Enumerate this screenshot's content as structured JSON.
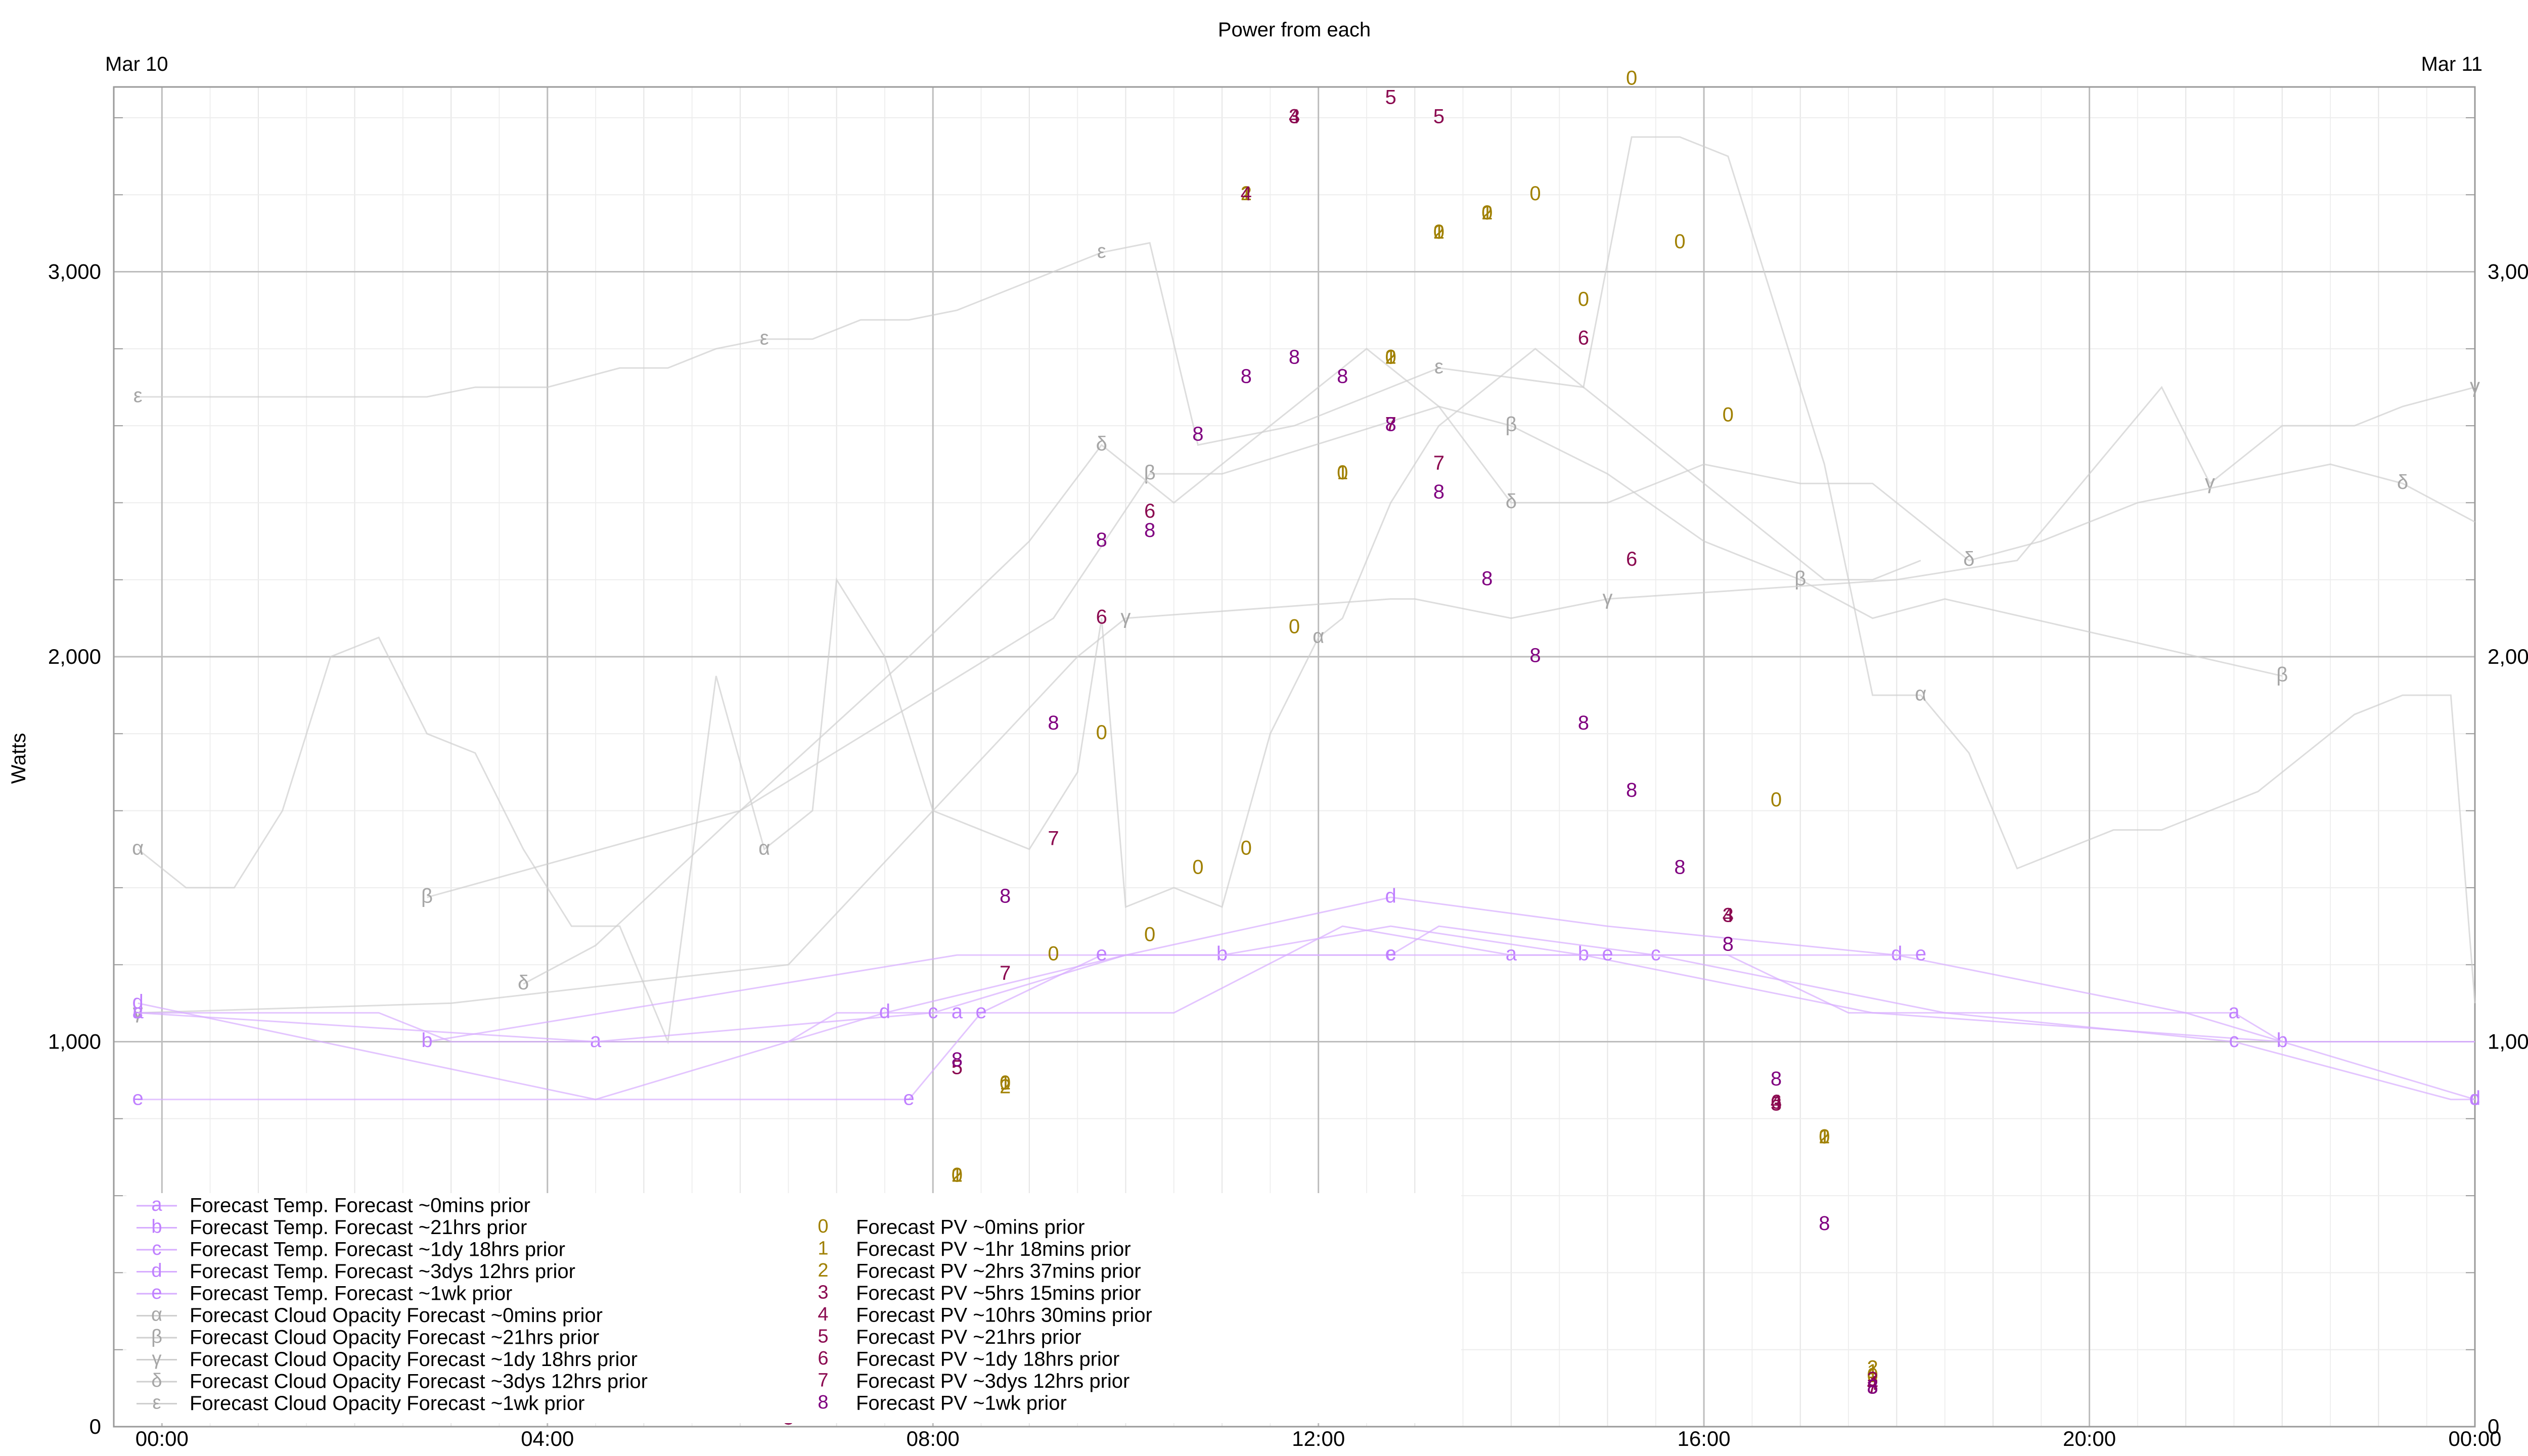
{
  "chart_data": {
    "type": "line",
    "title": "Power from each",
    "ylabel": "Watts",
    "xlabel": "",
    "top_labels": [
      "Mar 10",
      "Mar 11"
    ],
    "x_domain_hours": [
      -0.5,
      24.0
    ],
    "ylim": [
      0,
      3480
    ],
    "x_ticks": [
      {
        "h": 0,
        "label": "00:00"
      },
      {
        "h": 4,
        "label": "04:00"
      },
      {
        "h": 8,
        "label": "08:00"
      },
      {
        "h": 12,
        "label": "12:00"
      },
      {
        "h": 16,
        "label": "16:00"
      },
      {
        "h": 20,
        "label": "20:00"
      },
      {
        "h": 24,
        "label": "00:00"
      }
    ],
    "y_ticks": [
      {
        "v": 0,
        "label": "0"
      },
      {
        "v": 1000,
        "label": "1,000"
      },
      {
        "v": 2000,
        "label": "2,000"
      },
      {
        "v": 3000,
        "label": "3,000"
      }
    ],
    "grid": true,
    "legend_position": "bottom-left",
    "colors": {
      "temp": "#c080ff",
      "cloud": "#b8b8b8",
      "pv_recent": "#a08000",
      "pv_older": "#8b0a50",
      "pv_oldest": "#800080",
      "grid": "#d9d9d9"
    },
    "temp_series": [
      {
        "symbol": "a",
        "name": "Forecast Temp. Forecast ~0mins prior",
        "x": [
          -0.25,
          2.25,
          3.0,
          4.5,
          6.5,
          7.0,
          8.25,
          10.5,
          12.25,
          14.0,
          16.25,
          17.5,
          21.5,
          22.0,
          24.0
        ],
        "y": [
          1075,
          1075,
          1000,
          1000,
          1000,
          1075,
          1075,
          1075,
          1300,
          1225,
          1225,
          1075,
          1075,
          1000,
          1000
        ]
      },
      {
        "symbol": "b",
        "name": "Forecast Temp. Forecast ~21hrs prior",
        "x": [
          2.75,
          8.25,
          11.0,
          12.75,
          14.75,
          17.75,
          22.0,
          24.0
        ],
        "y": [
          1000,
          1225,
          1225,
          1300,
          1225,
          1075,
          1000,
          1000
        ]
      },
      {
        "symbol": "c",
        "name": "Forecast Temp. Forecast ~1dy 18hrs prior",
        "x": [
          -0.25,
          4.5,
          8.0,
          10.0,
          12.75,
          13.25,
          15.5,
          18.5,
          21.5,
          23.75,
          24.0
        ],
        "y": [
          1075,
          1000,
          1075,
          1225,
          1225,
          1300,
          1225,
          1075,
          1000,
          850,
          850
        ]
      },
      {
        "symbol": "d",
        "name": "Forecast Temp. Forecast ~3dys 12hrs prior",
        "x": [
          -0.25,
          4.5,
          7.5,
          10.0,
          12.75,
          15.0,
          18.0,
          21.0,
          24.0
        ],
        "y": [
          1100,
          850,
          1075,
          1225,
          1375,
          1300,
          1225,
          1075,
          850
        ]
      },
      {
        "symbol": "e",
        "name": "Forecast Temp. Forecast ~1wk prior",
        "x": [
          -0.25,
          7.75,
          8.5,
          9.75,
          12.75,
          15.0,
          18.25
        ],
        "y": [
          850,
          850,
          1075,
          1225,
          1225,
          1225,
          1225
        ]
      }
    ],
    "cloud_series": [
      {
        "symbol": "α",
        "name": "Forecast Cloud Opacity Forecast ~0mins prior",
        "x": [
          -0.25,
          0.25,
          0.75,
          1.25,
          1.75,
          2.25,
          2.75,
          3.25,
          3.75,
          4.25,
          4.75,
          5.25,
          5.75,
          6.25,
          6.75,
          7.0,
          7.5,
          8.0,
          8.5,
          9.0,
          9.5,
          9.75,
          10.0,
          10.5,
          11.0,
          11.5,
          12.0,
          12.25,
          12.75,
          13.25,
          13.75,
          14.25,
          14.75,
          15.25,
          15.75,
          16.25,
          16.75,
          17.25,
          17.75,
          18.25,
          18.75,
          19.25,
          19.75,
          20.25,
          20.75,
          21.25,
          21.75,
          22.25,
          22.75,
          23.25,
          23.75,
          24.0
        ],
        "y": [
          1500,
          1400,
          1400,
          1600,
          2000,
          2050,
          1800,
          1750,
          1500,
          1300,
          1300,
          1000,
          1950,
          1500,
          1600,
          2200,
          2000,
          1600,
          1550,
          1500,
          1700,
          2100,
          1350,
          1400,
          1350,
          1800,
          2050,
          2100,
          2400,
          2600,
          2700,
          2800,
          2700,
          3350,
          3350,
          3300,
          2900,
          2500,
          1900,
          1900,
          1750,
          1450,
          1500,
          1550,
          1550,
          1600,
          1650,
          1750,
          1850,
          1900,
          1900,
          1100
        ]
      },
      {
        "symbol": "β",
        "name": "Forecast Cloud Opacity Forecast ~21hrs prior",
        "x": [
          2.75,
          6.0,
          9.25,
          10.25,
          11.0,
          13.25,
          14.0,
          15.0,
          16.0,
          17.0,
          17.75,
          18.5,
          22.0
        ],
        "y": [
          1375,
          1600,
          2100,
          2475,
          2475,
          2650,
          2600,
          2475,
          2300,
          2200,
          2100,
          2150,
          1950
        ]
      },
      {
        "symbol": "γ",
        "name": "Forecast Cloud Opacity Forecast ~1dy 18hrs prior",
        "x": [
          -0.25,
          3.0,
          6.5,
          9.5,
          10.0,
          12.75,
          13.0,
          14.0,
          15.0,
          18.0,
          19.25,
          20.75,
          21.25,
          22.0,
          22.75,
          23.25,
          24.0
        ],
        "y": [
          1075,
          1100,
          1200,
          2000,
          2100,
          2150,
          2150,
          2100,
          2150,
          2200,
          2250,
          2700,
          2450,
          2600,
          2600,
          2650,
          2700
        ]
      },
      {
        "symbol": "δ",
        "name": "Forecast Cloud Opacity Forecast ~3dys 12hrs prior",
        "x": [
          3.75,
          4.5,
          6.0,
          7.75,
          9.0,
          9.75,
          10.5,
          11.25,
          12.5,
          13.25,
          14.0,
          15.0,
          16.0,
          17.0,
          17.75,
          18.75,
          19.5,
          20.5,
          21.5,
          22.5,
          23.25,
          24.0
        ],
        "y": [
          1150,
          1250,
          1600,
          2000,
          2300,
          2550,
          2400,
          2550,
          2800,
          2650,
          2400,
          2400,
          2500,
          2450,
          2450,
          2250,
          2300,
          2400,
          2450,
          2500,
          2450,
          2350
        ]
      },
      {
        "symbol": "ε",
        "name": "Forecast Cloud Opacity Forecast ~1wk prior",
        "x": [
          -0.25,
          2.75,
          3.25,
          4.0,
          4.75,
          5.25,
          5.75,
          6.25,
          6.75,
          7.25,
          7.75,
          8.25,
          8.75,
          9.25,
          9.75,
          10.25,
          10.75,
          11.25,
          11.75,
          12.25,
          12.75,
          13.25,
          14.75,
          16.0,
          16.75,
          17.25,
          17.75,
          18.25
        ],
        "y": [
          2675,
          2675,
          2700,
          2700,
          2750,
          2750,
          2800,
          2825,
          2825,
          2875,
          2875,
          2900,
          2950,
          3000,
          3050,
          3075,
          2550,
          2575,
          2600,
          2650,
          2700,
          2750,
          2700,
          2450,
          2300,
          2200,
          2200,
          2250
        ]
      }
    ],
    "pv_series": [
      {
        "symbol": "0",
        "name": "Forecast PV ~0mins prior",
        "points": [
          [
            6.5,
            30
          ],
          [
            8.25,
            650
          ],
          [
            8.75,
            890
          ],
          [
            9.25,
            1225
          ],
          [
            9.75,
            1800
          ],
          [
            10.25,
            1275
          ],
          [
            10.75,
            1450
          ],
          [
            11.25,
            1500
          ],
          [
            11.75,
            2075
          ],
          [
            12.25,
            2475
          ],
          [
            12.75,
            2775
          ],
          [
            13.25,
            3100
          ],
          [
            13.75,
            3150
          ],
          [
            14.25,
            3200
          ],
          [
            14.75,
            2925
          ],
          [
            15.25,
            3500
          ],
          [
            15.75,
            3075
          ],
          [
            16.25,
            2625
          ],
          [
            16.75,
            1625
          ],
          [
            17.25,
            750
          ],
          [
            17.75,
            130
          ]
        ]
      },
      {
        "symbol": "1",
        "name": "Forecast PV ~1hr 18mins prior",
        "points": [
          [
            6.5,
            40
          ],
          [
            7.5,
            200
          ],
          [
            8.25,
            650
          ],
          [
            8.75,
            890
          ],
          [
            11.25,
            3200
          ],
          [
            12.25,
            2475
          ],
          [
            12.75,
            2775
          ],
          [
            13.25,
            3100
          ],
          [
            13.75,
            3150
          ],
          [
            17.25,
            750
          ],
          [
            17.75,
            140
          ]
        ]
      },
      {
        "symbol": "2",
        "name": "Forecast PV ~2hrs 37mins prior",
        "points": [
          [
            6.5,
            45
          ],
          [
            7.5,
            210
          ],
          [
            8.25,
            650
          ],
          [
            8.75,
            880
          ],
          [
            11.25,
            3200
          ],
          [
            12.75,
            2775
          ],
          [
            13.25,
            3100
          ],
          [
            13.75,
            3150
          ],
          [
            17.25,
            750
          ],
          [
            17.75,
            150
          ]
        ]
      },
      {
        "symbol": "3",
        "name": "Forecast PV ~5hrs 15mins prior",
        "points": [
          [
            6.5,
            20
          ],
          [
            7.5,
            180
          ],
          [
            11.75,
            3400
          ],
          [
            16.25,
            1325
          ],
          [
            16.75,
            835
          ],
          [
            17.75,
            120
          ]
        ]
      },
      {
        "symbol": "4",
        "name": "Forecast PV ~10hrs 30mins prior",
        "points": [
          [
            7.5,
            190
          ],
          [
            11.25,
            3200
          ],
          [
            11.75,
            3400
          ],
          [
            16.25,
            1325
          ],
          [
            16.75,
            840
          ],
          [
            17.75,
            110
          ]
        ]
      },
      {
        "symbol": "5",
        "name": "Forecast PV ~21hrs prior",
        "points": [
          [
            7.5,
            170
          ],
          [
            8.25,
            930
          ],
          [
            12.75,
            3450
          ],
          [
            13.25,
            3400
          ],
          [
            17.75,
            100
          ]
        ]
      },
      {
        "symbol": "6",
        "name": "Forecast PV ~1dy 18hrs prior",
        "points": [
          [
            7.5,
            160
          ],
          [
            9.75,
            2100
          ],
          [
            10.25,
            2375
          ],
          [
            14.75,
            2825
          ],
          [
            15.25,
            2250
          ],
          [
            16.75,
            840
          ]
        ]
      },
      {
        "symbol": "7",
        "name": "Forecast PV ~3dys 12hrs prior",
        "points": [
          [
            7.5,
            80
          ],
          [
            8.75,
            1175
          ],
          [
            9.25,
            1525
          ],
          [
            12.75,
            2600
          ],
          [
            13.25,
            2500
          ],
          [
            17.75,
            100
          ]
        ]
      },
      {
        "symbol": "8",
        "name": "Forecast PV ~1wk prior",
        "points": [
          [
            7.5,
            50
          ],
          [
            8.25,
            950
          ],
          [
            8.75,
            1375
          ],
          [
            9.25,
            1825
          ],
          [
            9.75,
            2300
          ],
          [
            10.25,
            2325
          ],
          [
            10.75,
            2575
          ],
          [
            11.25,
            2725
          ],
          [
            11.75,
            2775
          ],
          [
            12.25,
            2725
          ],
          [
            12.75,
            2600
          ],
          [
            13.25,
            2425
          ],
          [
            13.75,
            2200
          ],
          [
            14.25,
            2000
          ],
          [
            14.75,
            1825
          ],
          [
            15.25,
            1650
          ],
          [
            15.75,
            1450
          ],
          [
            16.25,
            1250
          ],
          [
            16.75,
            900
          ],
          [
            17.25,
            525
          ],
          [
            17.75,
            100
          ]
        ]
      }
    ]
  }
}
